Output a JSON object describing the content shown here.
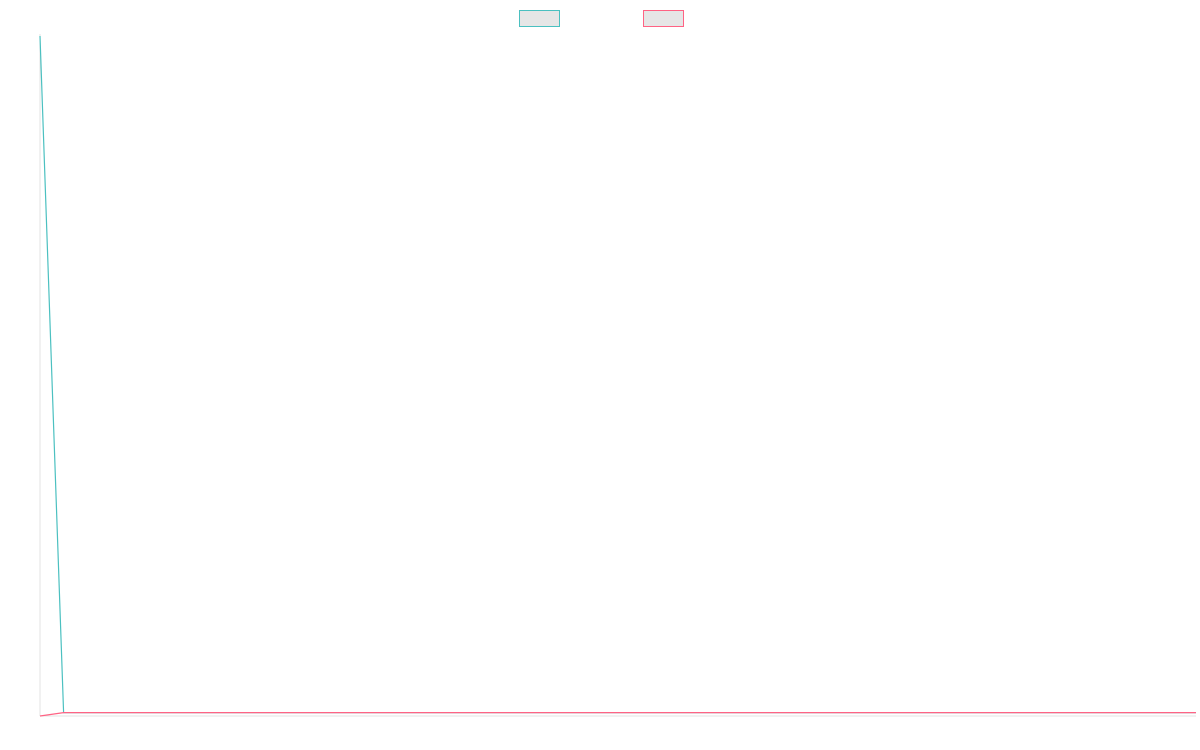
{
  "chart_data": {
    "type": "line",
    "title": "",
    "xlabel": "",
    "ylabel": "",
    "grid": false,
    "legend_position": "top-center",
    "x": [
      0,
      1,
      2,
      3,
      4,
      5,
      6,
      7,
      8,
      9,
      10,
      11,
      12,
      13,
      14,
      15,
      16,
      17,
      18,
      19,
      20,
      21,
      22,
      23,
      24,
      25,
      26,
      27,
      28,
      29,
      30,
      31,
      32,
      33,
      34,
      35,
      36,
      37,
      38,
      39,
      40,
      41,
      42,
      43,
      44,
      45,
      46,
      47,
      48,
      49
    ],
    "ylim": [
      0,
      100
    ],
    "series": [
      {
        "color": "#4bc0c0",
        "fill": "#e6e6e6",
        "values": [
          100,
          0.5,
          0.5,
          0.5,
          0.5,
          0.5,
          0.5,
          0.5,
          0.5,
          0.5,
          0.5,
          0.5,
          0.5,
          0.5,
          0.5,
          0.5,
          0.5,
          0.5,
          0.5,
          0.5,
          0.5,
          0.5,
          0.5,
          0.5,
          0.5,
          0.5,
          0.5,
          0.5,
          0.5,
          0.5,
          0.5,
          0.5,
          0.5,
          0.5,
          0.5,
          0.5,
          0.5,
          0.5,
          0.5,
          0.5,
          0.5,
          0.5,
          0.5,
          0.5,
          0.5,
          0.5,
          0.5,
          0.5,
          0.5,
          0.5
        ]
      },
      {
        "color": "#ff6384",
        "fill": "#e6e6e6",
        "values": [
          0,
          0.5,
          0.5,
          0.5,
          0.5,
          0.5,
          0.5,
          0.5,
          0.5,
          0.5,
          0.5,
          0.5,
          0.5,
          0.5,
          0.5,
          0.5,
          0.5,
          0.5,
          0.5,
          0.5,
          0.5,
          0.5,
          0.5,
          0.5,
          0.5,
          0.5,
          0.5,
          0.5,
          0.5,
          0.5,
          0.5,
          0.5,
          0.5,
          0.5,
          0.5,
          0.5,
          0.5,
          0.5,
          0.5,
          0.5,
          0.5,
          0.5,
          0.5,
          0.5,
          0.5,
          0.5,
          0.5,
          0.5,
          0.5,
          0.5
        ]
      }
    ]
  }
}
